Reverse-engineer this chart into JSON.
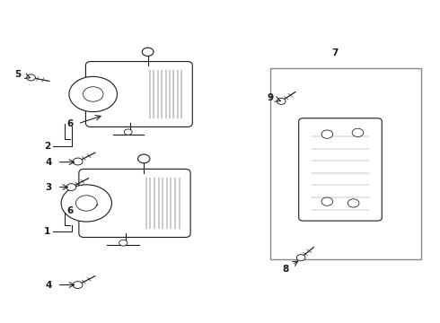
{
  "bg_color": "#ffffff",
  "line_color": "#1a1a1a",
  "box_color": "#888888",
  "figsize": [
    4.9,
    3.6
  ],
  "dpi": 100
}
